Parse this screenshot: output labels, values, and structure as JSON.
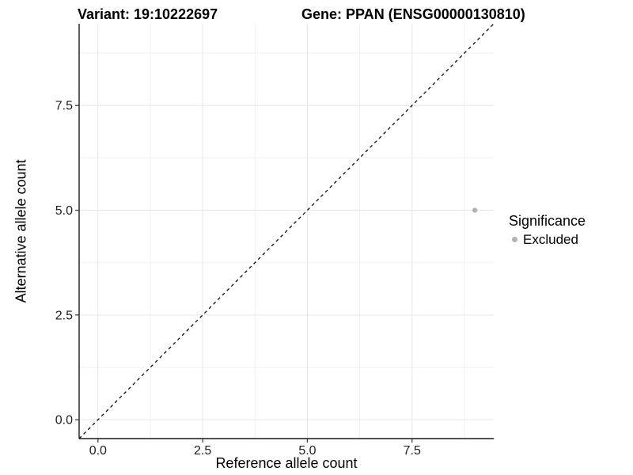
{
  "chart_data": {
    "type": "scatter",
    "title_left": "Variant: 19:10222697",
    "title_right": "Gene: PPAN (ENSG00000130810)",
    "xlabel": "Reference allele count",
    "ylabel": "Alternative allele count",
    "xlim": [
      -0.45,
      9.45
    ],
    "ylim": [
      -0.45,
      9.45
    ],
    "x_ticks": [
      0.0,
      2.5,
      5.0,
      7.5
    ],
    "y_ticks": [
      0.0,
      2.5,
      5.0,
      7.5
    ],
    "x_minor_ticks": [
      1.25,
      3.75,
      6.25,
      8.75
    ],
    "y_minor_ticks": [
      1.25,
      3.75,
      6.25,
      8.75
    ],
    "grid": true,
    "legend_position": "right",
    "legend": {
      "title": "Significance",
      "items": [
        {
          "label": "Excluded",
          "color": "#b3b3b3"
        }
      ]
    },
    "points": [
      {
        "x": 9,
        "y": 5,
        "series": "Excluded"
      }
    ],
    "reference_line": {
      "kind": "identity-diagonal",
      "equation": "y = x",
      "style": "dashed",
      "color": "#000000"
    },
    "colors": {
      "point": "#b3b3b3",
      "grid_major": "#e6e6e6",
      "grid_minor": "#f1f1f1",
      "axis_line": "#1a1a1a",
      "tick_mark": "#333333",
      "tick_label": "#1f1f1f"
    }
  }
}
